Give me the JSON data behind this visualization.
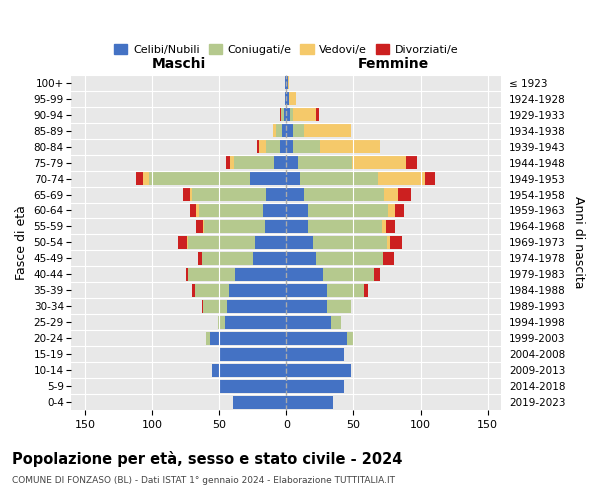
{
  "age_groups": [
    "0-4",
    "5-9",
    "10-14",
    "15-19",
    "20-24",
    "25-29",
    "30-34",
    "35-39",
    "40-44",
    "45-49",
    "50-54",
    "55-59",
    "60-64",
    "65-69",
    "70-74",
    "75-79",
    "80-84",
    "85-89",
    "90-94",
    "95-99",
    "100+"
  ],
  "birth_years": [
    "2019-2023",
    "2014-2018",
    "2009-2013",
    "2004-2008",
    "1999-2003",
    "1994-1998",
    "1989-1993",
    "1984-1988",
    "1979-1983",
    "1974-1978",
    "1969-1973",
    "1964-1968",
    "1959-1963",
    "1954-1958",
    "1949-1953",
    "1944-1948",
    "1939-1943",
    "1934-1938",
    "1929-1933",
    "1924-1928",
    "≤ 1923"
  ],
  "colors": {
    "celibi": "#4472c4",
    "coniugati": "#b5c98e",
    "vedovi": "#f5c96a",
    "divorziati": "#cc2020"
  },
  "maschi": {
    "celibi": [
      40,
      50,
      55,
      50,
      57,
      46,
      44,
      43,
      38,
      25,
      23,
      16,
      17,
      15,
      27,
      9,
      5,
      3,
      2,
      1,
      1
    ],
    "coniugati": [
      0,
      0,
      0,
      0,
      3,
      5,
      18,
      25,
      35,
      38,
      50,
      45,
      48,
      55,
      75,
      30,
      10,
      5,
      2,
      0,
      0
    ],
    "vedovi": [
      0,
      0,
      0,
      0,
      0,
      0,
      0,
      0,
      0,
      0,
      1,
      1,
      2,
      2,
      5,
      3,
      5,
      2,
      0,
      0,
      0
    ],
    "divorziati": [
      0,
      0,
      0,
      0,
      0,
      0,
      1,
      2,
      2,
      3,
      7,
      5,
      5,
      5,
      5,
      3,
      2,
      0,
      1,
      0,
      0
    ]
  },
  "femmine": {
    "celibi": [
      35,
      43,
      48,
      43,
      45,
      33,
      30,
      30,
      27,
      22,
      20,
      16,
      16,
      13,
      10,
      9,
      5,
      5,
      3,
      2,
      1
    ],
    "coniugati": [
      0,
      0,
      0,
      0,
      5,
      8,
      18,
      28,
      38,
      50,
      55,
      55,
      60,
      60,
      58,
      40,
      20,
      8,
      2,
      0,
      0
    ],
    "vedovi": [
      0,
      0,
      0,
      0,
      0,
      0,
      0,
      0,
      0,
      0,
      2,
      3,
      5,
      10,
      35,
      40,
      45,
      35,
      17,
      5,
      1
    ],
    "divorziati": [
      0,
      0,
      0,
      0,
      0,
      0,
      0,
      3,
      5,
      8,
      9,
      7,
      7,
      10,
      8,
      8,
      0,
      0,
      2,
      0,
      0
    ]
  },
  "xlim": 160,
  "title": "Popolazione per età, sesso e stato civile - 2024",
  "subtitle": "COMUNE DI FONZASO (BL) - Dati ISTAT 1° gennaio 2024 - Elaborazione TUTTITALIA.IT",
  "xlabel_left": "Maschi",
  "xlabel_right": "Femmine",
  "ylabel_left": "Fasce di età",
  "ylabel_right": "Anni di nascita",
  "legend_labels": [
    "Celibi/Nubili",
    "Coniugati/e",
    "Vedovi/e",
    "Divorziati/e"
  ],
  "plot_bg": "#e8e8e8",
  "fig_bg": "#ffffff"
}
